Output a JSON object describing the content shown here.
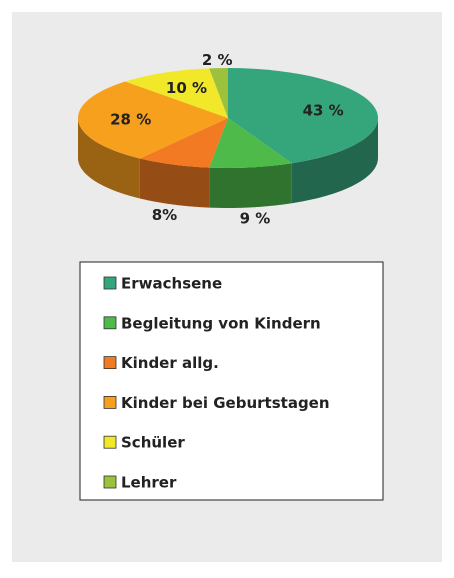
{
  "chart_data": {
    "type": "pie",
    "categories": [
      "Erwachsene",
      "Begleitung von Kindern",
      "Kinder allg.",
      "Kinder bei Geburtstagen",
      "Schüler",
      "Lehrer"
    ],
    "values": [
      43,
      9,
      8,
      28,
      10,
      2
    ],
    "value_labels": [
      "43 %",
      "9 %",
      "8%",
      "28 %",
      "10 %",
      "2 %"
    ],
    "colors": [
      "#35a57c",
      "#4dba4a",
      "#f27a22",
      "#f6a01e",
      "#f1e82a",
      "#9cc23d"
    ],
    "legend": "bottom"
  }
}
